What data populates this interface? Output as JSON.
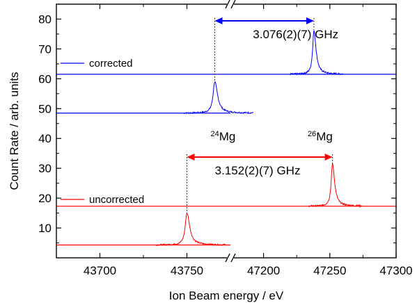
{
  "chart_data": {
    "type": "line",
    "xlabel": "Ion Beam energy / eV",
    "ylabel": "Count Rate / arb. units",
    "ylim": [
      0,
      85
    ],
    "yticks": [
      10,
      20,
      30,
      40,
      50,
      60,
      70,
      80
    ],
    "x_axis_broken": true,
    "x_segments": [
      {
        "range": [
          43675,
          43775
        ],
        "ticks": [
          43700,
          43750
        ]
      },
      {
        "range": [
          47175,
          47300
        ],
        "ticks": [
          47200,
          47250,
          47300
        ]
      }
    ],
    "series": [
      {
        "name": "corrected",
        "color": "#0000ff",
        "baseline_left": 48.5,
        "baseline_right": 61.5,
        "peak_left": {
          "x": 43766,
          "y": 59
        },
        "peak_right": {
          "x": 47238,
          "y": 76
        }
      },
      {
        "name": "uncorrected",
        "color": "#ff0000",
        "baseline_left": 4.3,
        "baseline_right": 17.3,
        "peak_left": {
          "x": 43750,
          "y": 15
        },
        "peak_right": {
          "x": 47252,
          "y": 31.5
        }
      }
    ],
    "annotations": {
      "corrected_split": "3.076(2)(7) GHz",
      "uncorrected_split": "3.152(2)(7) GHz",
      "isotope_left_mass": "24",
      "isotope_left_elem": "Mg",
      "isotope_right_mass": "26",
      "isotope_right_elem": "Mg"
    },
    "legend": [
      "corrected",
      "uncorrected"
    ]
  }
}
